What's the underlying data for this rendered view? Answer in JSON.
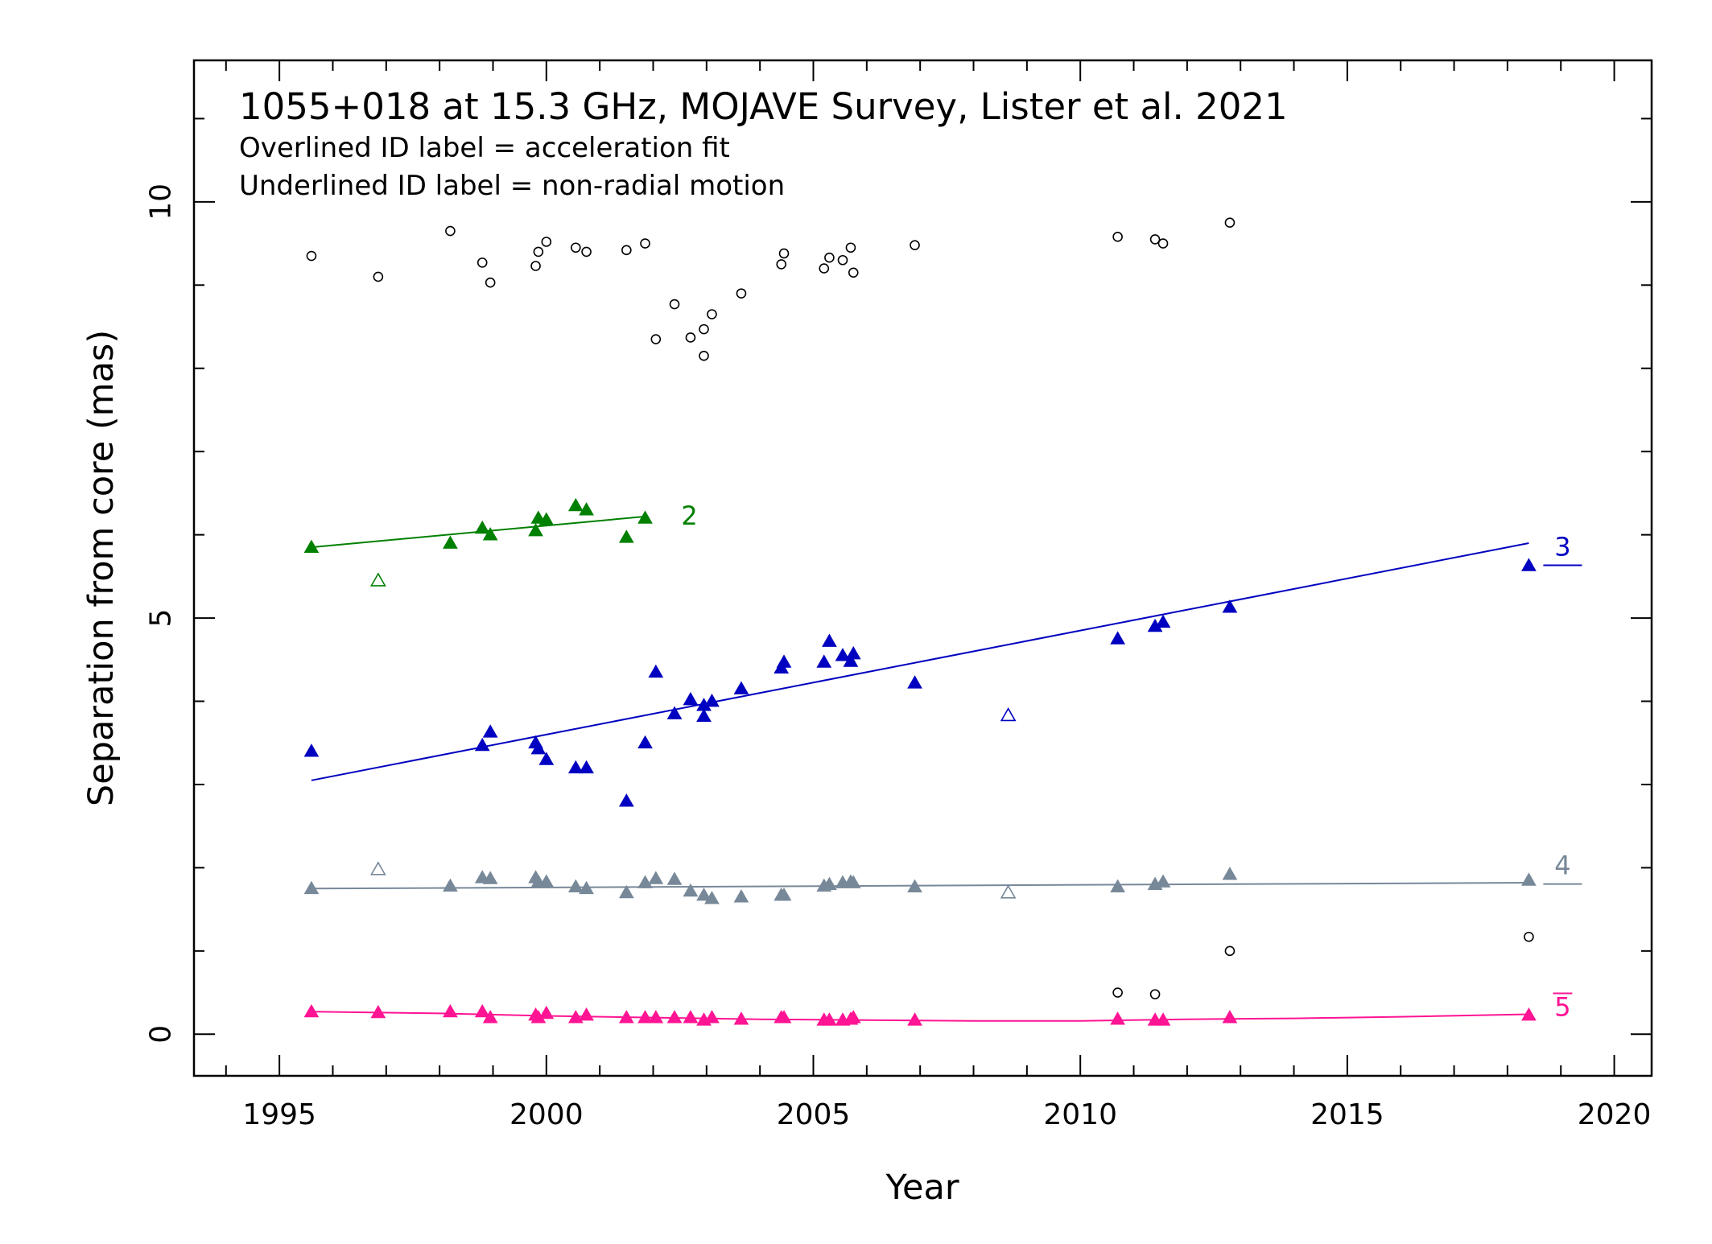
{
  "chart_data": {
    "type": "scatter",
    "title": "1055+018 at 15.3 GHz, MOJAVE Survey, Lister et al. 2021",
    "notes": [
      "Overlined ID label = acceleration fit",
      "Underlined ID label = non-radial motion"
    ],
    "xlabel": "Year",
    "ylabel": "Separation from core (mas)",
    "xlim": [
      1993.4,
      2020.7
    ],
    "ylim": [
      -0.5,
      11.7
    ],
    "xticks_major": [
      1995,
      2000,
      2005,
      2010,
      2015,
      2020
    ],
    "yticks_major": [
      0,
      5,
      10
    ],
    "grid": false,
    "unassigned": {
      "name": "",
      "marker": "open-circle",
      "color": "#000000",
      "points": [
        [
          1995.6,
          9.35
        ],
        [
          1996.85,
          9.1
        ],
        [
          1998.2,
          9.65
        ],
        [
          1998.8,
          9.27
        ],
        [
          1998.95,
          9.03
        ],
        [
          1999.8,
          9.23
        ],
        [
          1999.85,
          9.4
        ],
        [
          2000.0,
          9.52
        ],
        [
          2000.55,
          9.45
        ],
        [
          2000.75,
          9.4
        ],
        [
          2001.5,
          9.42
        ],
        [
          2001.85,
          9.5
        ],
        [
          2002.05,
          8.35
        ],
        [
          2002.4,
          8.77
        ],
        [
          2002.7,
          8.37
        ],
        [
          2002.95,
          8.47
        ],
        [
          2002.95,
          8.15
        ],
        [
          2003.1,
          8.65
        ],
        [
          2003.65,
          8.9
        ],
        [
          2004.4,
          9.25
        ],
        [
          2004.45,
          9.38
        ],
        [
          2005.2,
          9.2
        ],
        [
          2005.3,
          9.33
        ],
        [
          2005.55,
          9.3
        ],
        [
          2005.7,
          9.45
        ],
        [
          2005.75,
          9.15
        ],
        [
          2006.9,
          9.48
        ],
        [
          2010.7,
          9.58
        ],
        [
          2011.4,
          9.55
        ],
        [
          2011.55,
          9.5
        ],
        [
          2012.8,
          9.75
        ],
        [
          2010.7,
          0.5
        ],
        [
          2011.4,
          0.48
        ],
        [
          2012.8,
          1.0
        ],
        [
          2018.4,
          1.17
        ]
      ]
    },
    "series": [
      {
        "name": "2",
        "label_style": "plain",
        "color": "#008000",
        "fit": [
          [
            1995.6,
            5.85
          ],
          [
            2001.85,
            6.22
          ]
        ],
        "points": [
          [
            1995.6,
            5.85
          ],
          [
            1998.2,
            5.9
          ],
          [
            1998.8,
            6.08
          ],
          [
            1998.95,
            6.0
          ],
          [
            1999.8,
            6.05
          ],
          [
            1999.85,
            6.2
          ],
          [
            2000.0,
            6.18
          ],
          [
            2000.55,
            6.35
          ],
          [
            2000.75,
            6.3
          ],
          [
            2001.5,
            5.97
          ],
          [
            2001.85,
            6.2
          ]
        ],
        "open_points": [
          [
            1996.85,
            5.45
          ]
        ]
      },
      {
        "name": "3",
        "label_style": "underlined",
        "color": "#0000c0",
        "fit": [
          [
            1995.6,
            3.05
          ],
          [
            2018.4,
            5.9
          ]
        ],
        "points": [
          [
            1995.6,
            3.4
          ],
          [
            1998.8,
            3.47
          ],
          [
            1998.95,
            3.63
          ],
          [
            1999.8,
            3.5
          ],
          [
            1999.85,
            3.43
          ],
          [
            2000.0,
            3.3
          ],
          [
            2000.55,
            3.2
          ],
          [
            2000.75,
            3.2
          ],
          [
            2001.5,
            2.8
          ],
          [
            2001.85,
            3.5
          ],
          [
            2002.05,
            4.35
          ],
          [
            2002.4,
            3.85
          ],
          [
            2002.7,
            4.02
          ],
          [
            2002.95,
            3.95
          ],
          [
            2002.95,
            3.82
          ],
          [
            2003.1,
            4.0
          ],
          [
            2003.65,
            4.15
          ],
          [
            2004.4,
            4.4
          ],
          [
            2004.45,
            4.47
          ],
          [
            2005.2,
            4.47
          ],
          [
            2005.3,
            4.72
          ],
          [
            2005.55,
            4.55
          ],
          [
            2005.7,
            4.48
          ],
          [
            2005.75,
            4.57
          ],
          [
            2006.9,
            4.22
          ],
          [
            2010.7,
            4.75
          ],
          [
            2011.4,
            4.9
          ],
          [
            2011.55,
            4.95
          ],
          [
            2012.8,
            5.13
          ],
          [
            2018.4,
            5.63
          ]
        ],
        "open_points": [
          [
            2008.65,
            3.83
          ]
        ]
      },
      {
        "name": "4",
        "label_style": "underlined",
        "color": "#778899",
        "fit": [
          [
            1995.6,
            1.75
          ],
          [
            2018.4,
            1.82
          ]
        ],
        "points": [
          [
            1995.6,
            1.75
          ],
          [
            1998.2,
            1.78
          ],
          [
            1998.8,
            1.88
          ],
          [
            1998.95,
            1.87
          ],
          [
            1999.8,
            1.88
          ],
          [
            1999.85,
            1.83
          ],
          [
            2000.0,
            1.83
          ],
          [
            2000.55,
            1.77
          ],
          [
            2000.75,
            1.75
          ],
          [
            2001.5,
            1.7
          ],
          [
            2001.85,
            1.82
          ],
          [
            2002.05,
            1.87
          ],
          [
            2002.4,
            1.86
          ],
          [
            2002.7,
            1.72
          ],
          [
            2002.95,
            1.67
          ],
          [
            2003.1,
            1.63
          ],
          [
            2003.65,
            1.65
          ],
          [
            2004.4,
            1.67
          ],
          [
            2004.45,
            1.67
          ],
          [
            2005.2,
            1.78
          ],
          [
            2005.3,
            1.8
          ],
          [
            2005.55,
            1.82
          ],
          [
            2005.7,
            1.83
          ],
          [
            2005.75,
            1.82
          ],
          [
            2006.9,
            1.77
          ],
          [
            2010.7,
            1.77
          ],
          [
            2011.4,
            1.8
          ],
          [
            2011.55,
            1.83
          ],
          [
            2012.8,
            1.92
          ],
          [
            2018.4,
            1.85
          ]
        ],
        "open_points": [
          [
            1996.85,
            1.98
          ],
          [
            2008.65,
            1.7
          ]
        ]
      },
      {
        "name": "5",
        "label_style": "overlined",
        "color": "#ff1493",
        "fit_curve": [
          [
            1995.6,
            0.27
          ],
          [
            1998.0,
            0.25
          ],
          [
            2000.0,
            0.22
          ],
          [
            2002.0,
            0.2
          ],
          [
            2004.0,
            0.18
          ],
          [
            2006.0,
            0.17
          ],
          [
            2008.0,
            0.16
          ],
          [
            2010.0,
            0.16
          ],
          [
            2012.0,
            0.18
          ],
          [
            2014.0,
            0.19
          ],
          [
            2016.0,
            0.21
          ],
          [
            2018.4,
            0.24
          ]
        ],
        "points": [
          [
            1995.6,
            0.27
          ],
          [
            1996.85,
            0.26
          ],
          [
            1998.2,
            0.27
          ],
          [
            1998.8,
            0.27
          ],
          [
            1998.95,
            0.2
          ],
          [
            1999.8,
            0.23
          ],
          [
            1999.85,
            0.2
          ],
          [
            2000.0,
            0.25
          ],
          [
            2000.55,
            0.2
          ],
          [
            2000.75,
            0.23
          ],
          [
            2001.5,
            0.2
          ],
          [
            2001.85,
            0.2
          ],
          [
            2002.05,
            0.2
          ],
          [
            2002.4,
            0.2
          ],
          [
            2002.7,
            0.2
          ],
          [
            2002.95,
            0.17
          ],
          [
            2003.1,
            0.2
          ],
          [
            2003.65,
            0.18
          ],
          [
            2004.4,
            0.2
          ],
          [
            2004.45,
            0.2
          ],
          [
            2005.2,
            0.17
          ],
          [
            2005.3,
            0.17
          ],
          [
            2005.55,
            0.17
          ],
          [
            2005.7,
            0.18
          ],
          [
            2005.75,
            0.2
          ],
          [
            2006.9,
            0.17
          ],
          [
            2010.7,
            0.18
          ],
          [
            2011.4,
            0.17
          ],
          [
            2011.55,
            0.17
          ],
          [
            2012.8,
            0.2
          ],
          [
            2018.4,
            0.23
          ]
        ],
        "open_points": []
      }
    ]
  }
}
